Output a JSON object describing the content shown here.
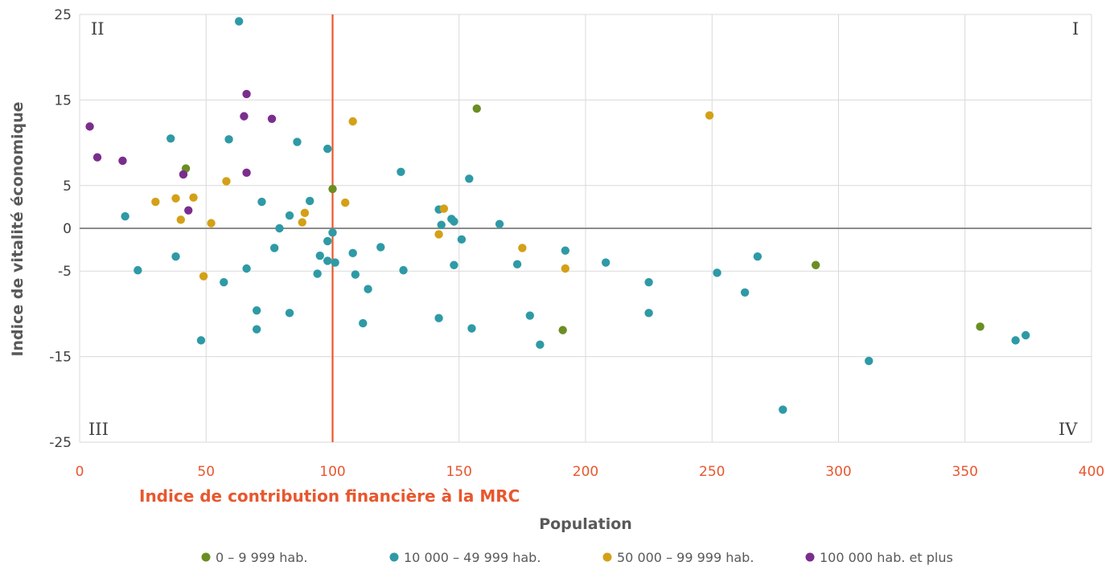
{
  "chart_data": {
    "type": "scatter",
    "xlabel": "Population",
    "ylabel": "Indice de vitalité économique",
    "reference_line": {
      "x": 100,
      "label": "Indice de contribution financière à la MRC",
      "color": "#e8572e"
    },
    "xlim": [
      0,
      400
    ],
    "ylim": [
      -25,
      25
    ],
    "x_ticks": [
      "0",
      "50",
      "100",
      "150",
      "200",
      "250",
      "300",
      "350",
      "400"
    ],
    "y_ticks": [
      "25",
      "15",
      "5",
      "0",
      "-5",
      "-15",
      "-25"
    ],
    "quadrants": {
      "top_left": "II",
      "top_right": "I",
      "bottom_left": "III",
      "bottom_right": "IV"
    },
    "grid": true,
    "legend_position": "bottom",
    "series": [
      {
        "name": "0 – 9 999 hab.",
        "color": "#6b8e23",
        "points": [
          [
            42,
            7.0
          ],
          [
            100,
            4.6
          ],
          [
            157,
            14.0
          ],
          [
            191,
            -11.9
          ],
          [
            291,
            -4.3
          ],
          [
            356,
            -11.5
          ]
        ]
      },
      {
        "name": "10 000 – 49 999 hab.",
        "color": "#2e9aa6",
        "points": [
          [
            63,
            24.2
          ],
          [
            36,
            10.5
          ],
          [
            59,
            10.4
          ],
          [
            86,
            10.1
          ],
          [
            98,
            9.3
          ],
          [
            127,
            6.6
          ],
          [
            154,
            5.8
          ],
          [
            72,
            3.1
          ],
          [
            91,
            3.2
          ],
          [
            142,
            2.2
          ],
          [
            18,
            1.4
          ],
          [
            83,
            1.5
          ],
          [
            147,
            1.1
          ],
          [
            148,
            0.8
          ],
          [
            143,
            0.4
          ],
          [
            166,
            0.5
          ],
          [
            79,
            0.0
          ],
          [
            100,
            -0.5
          ],
          [
            151,
            -1.3
          ],
          [
            98,
            -1.5
          ],
          [
            119,
            -2.2
          ],
          [
            77,
            -2.3
          ],
          [
            38,
            -3.3
          ],
          [
            95,
            -3.2
          ],
          [
            108,
            -2.9
          ],
          [
            192,
            -2.6
          ],
          [
            268,
            -3.3
          ],
          [
            98,
            -3.8
          ],
          [
            101,
            -4.0
          ],
          [
            148,
            -4.3
          ],
          [
            173,
            -4.2
          ],
          [
            208,
            -4.0
          ],
          [
            23,
            -4.9
          ],
          [
            66,
            -4.7
          ],
          [
            94,
            -5.3
          ],
          [
            109,
            -5.4
          ],
          [
            128,
            -4.9
          ],
          [
            252,
            -5.2
          ],
          [
            57,
            -6.3
          ],
          [
            225,
            -6.3
          ],
          [
            114,
            -7.1
          ],
          [
            263,
            -7.5
          ],
          [
            70,
            -9.6
          ],
          [
            83,
            -9.9
          ],
          [
            142,
            -10.5
          ],
          [
            178,
            -10.2
          ],
          [
            225,
            -9.9
          ],
          [
            112,
            -11.1
          ],
          [
            70,
            -11.8
          ],
          [
            155,
            -11.7
          ],
          [
            48,
            -13.1
          ],
          [
            182,
            -13.6
          ],
          [
            370,
            -13.1
          ],
          [
            374,
            -12.5
          ],
          [
            312,
            -15.5
          ],
          [
            278,
            -21.2
          ]
        ]
      },
      {
        "name": "50 000 – 99 999 hab.",
        "color": "#d4a017",
        "points": [
          [
            108,
            12.5
          ],
          [
            249,
            13.2
          ],
          [
            58,
            5.5
          ],
          [
            38,
            3.5
          ],
          [
            45,
            3.6
          ],
          [
            30,
            3.1
          ],
          [
            105,
            3.0
          ],
          [
            144,
            2.3
          ],
          [
            40,
            1.0
          ],
          [
            52,
            0.6
          ],
          [
            89,
            1.8
          ],
          [
            88,
            0.7
          ],
          [
            142,
            -0.7
          ],
          [
            175,
            -2.3
          ],
          [
            192,
            -4.7
          ],
          [
            49,
            -5.6
          ]
        ]
      },
      {
        "name": "100 000 hab. et plus",
        "color": "#7b2d8e",
        "points": [
          [
            4,
            11.9
          ],
          [
            7,
            8.3
          ],
          [
            17,
            7.9
          ],
          [
            66,
            15.7
          ],
          [
            65,
            13.1
          ],
          [
            76,
            12.8
          ],
          [
            66,
            6.5
          ],
          [
            41,
            6.3
          ],
          [
            43,
            2.1
          ]
        ]
      }
    ]
  }
}
